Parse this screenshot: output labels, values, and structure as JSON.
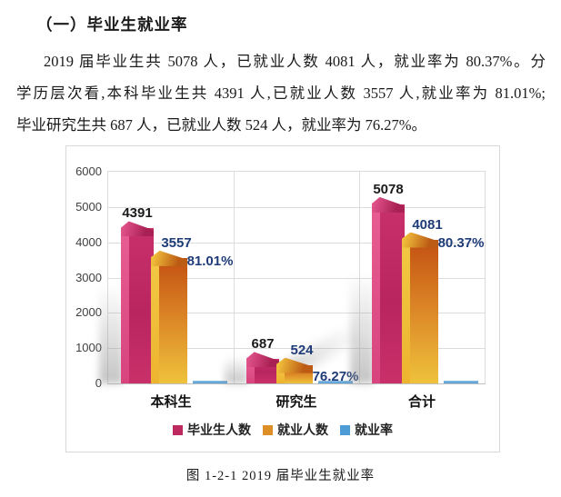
{
  "document": {
    "heading": "（一）毕业生就业率",
    "paragraph": {
      "line1": "2019 届毕业生共 5078 人，已就业人数 4081 人，就业率为 80.37%。分",
      "line2": "学历层次看,本科毕业生共 4391 人,已就业人数 3557 人,就业率为 81.01%;",
      "line3": "毕业研究生共 687 人，已就业人数 524 人，就业率为 76.27%。"
    },
    "caption": "图 1-2-1  2019 届毕业生就业率"
  },
  "chart_data": {
    "type": "bar",
    "title": "",
    "categories": [
      "本科生",
      "研究生",
      "合计"
    ],
    "series": [
      {
        "name": "毕业生人数",
        "values": [
          4391,
          687,
          5078
        ],
        "labels": [
          "4391",
          "687",
          "5078"
        ],
        "color": "#BE2A5F",
        "label_color": "#1A1A1A"
      },
      {
        "name": "就业人数",
        "values": [
          3557,
          524,
          4081
        ],
        "labels": [
          "3557",
          "524",
          "4081"
        ],
        "color": "#DD8E27",
        "label_color": "#1F3C78"
      },
      {
        "name": "就业率",
        "values": [
          81.01,
          76.27,
          80.37
        ],
        "labels": [
          "81.01%",
          "76.27%",
          "80.37%"
        ],
        "unit": "%",
        "color": "#4E9CD5",
        "label_color": "#1F3C78"
      }
    ],
    "ylim": [
      0,
      6000
    ],
    "yticks": [
      0,
      1000,
      2000,
      3000,
      4000,
      5000,
      6000
    ],
    "grid": true,
    "legend_position": "bottom",
    "axis_label_color": "#404040"
  }
}
